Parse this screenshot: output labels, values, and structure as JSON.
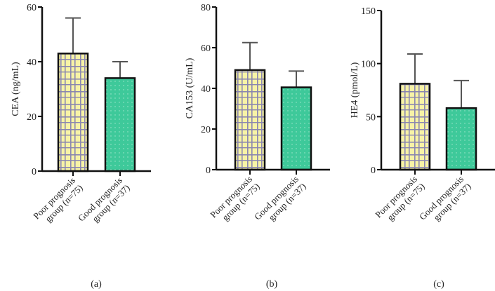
{
  "chart_data": [
    {
      "type": "bar",
      "panel_label": "(a)",
      "ylabel": "CEA (ng/mL)",
      "ylim": [
        0,
        60
      ],
      "yticks": [
        0,
        20,
        40,
        60
      ],
      "categories": [
        [
          "Poor prognosis",
          "group (n=75)"
        ],
        [
          "Good prognosis",
          "group (n=37)"
        ]
      ],
      "values": [
        43,
        34
      ],
      "error_upper": [
        56,
        40
      ]
    },
    {
      "type": "bar",
      "panel_label": "(b)",
      "ylabel": "CA153 (U/mL)",
      "ylim": [
        0,
        80
      ],
      "yticks": [
        0,
        20,
        40,
        60,
        80
      ],
      "categories": [
        [
          "Poor prognosis",
          "group (n=75)"
        ],
        [
          "Good prognosis",
          "group (n=37)"
        ]
      ],
      "values": [
        49,
        40.5
      ],
      "error_upper": [
        62.5,
        48.5
      ]
    },
    {
      "type": "bar",
      "panel_label": "(c)",
      "ylabel": "HE4 (pmol/L)",
      "ylim": [
        0,
        150
      ],
      "yticks": [
        0,
        50,
        100,
        150
      ],
      "categories": [
        [
          "Poor prognosis",
          "group (n=75)"
        ],
        [
          "Good prognosis",
          "group (n=37)"
        ]
      ],
      "values": [
        81,
        58
      ],
      "error_upper": [
        109,
        84
      ]
    }
  ],
  "colors": {
    "poor": "#f7f3a6",
    "good": "#3ec99a",
    "grid": "#8a86b0",
    "axis": "#111111"
  }
}
